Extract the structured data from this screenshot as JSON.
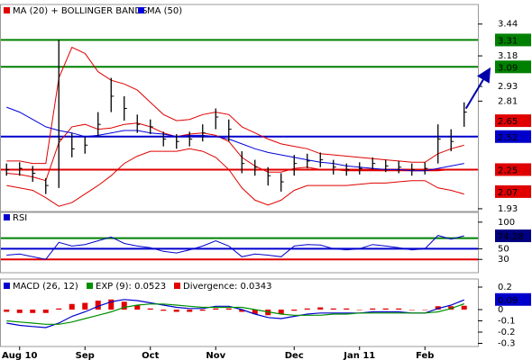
{
  "chart_data": [
    {
      "type": "ohlc",
      "high": [
        2.3,
        2.31,
        2.28,
        2.18,
        3.31,
        2.55,
        2.52,
        2.72,
        3.0,
        2.85,
        2.7,
        2.66,
        2.56,
        2.54,
        2.56,
        2.62,
        2.75,
        2.66,
        2.4,
        2.33,
        2.27,
        2.22,
        2.37,
        2.38,
        2.39,
        2.33,
        2.3,
        2.31,
        2.35,
        2.33,
        2.32,
        2.3,
        2.31,
        2.62,
        2.58,
        2.8
      ],
      "low": [
        2.2,
        2.2,
        2.15,
        2.05,
        2.1,
        2.35,
        2.38,
        2.52,
        2.72,
        2.65,
        2.55,
        2.54,
        2.44,
        2.42,
        2.44,
        2.48,
        2.58,
        2.48,
        2.22,
        2.2,
        2.12,
        2.07,
        2.2,
        2.26,
        2.27,
        2.21,
        2.2,
        2.21,
        2.25,
        2.23,
        2.22,
        2.2,
        2.21,
        2.3,
        2.4,
        2.6
      ],
      "close": [
        2.25,
        2.26,
        2.22,
        2.12,
        2.5,
        2.42,
        2.45,
        2.62,
        2.85,
        2.75,
        2.62,
        2.6,
        2.5,
        2.48,
        2.5,
        2.55,
        2.68,
        2.58,
        2.3,
        2.27,
        2.2,
        2.15,
        2.3,
        2.32,
        2.33,
        2.27,
        2.25,
        2.26,
        2.3,
        2.28,
        2.27,
        2.25,
        2.26,
        2.5,
        2.48,
        2.72
      ],
      "price_color": "#000000",
      "series": [
        {
          "name": "MA (20) + BOLLINGER BANDS",
          "color": "#e00000",
          "values": [
            2.22,
            2.21,
            2.19,
            2.16,
            2.47,
            2.6,
            2.62,
            2.58,
            2.59,
            2.62,
            2.63,
            2.6,
            2.55,
            2.52,
            2.54,
            2.55,
            2.53,
            2.48,
            2.35,
            2.28,
            2.23,
            2.23,
            2.26,
            2.27,
            2.25,
            2.25,
            2.24,
            2.24,
            2.24,
            2.24,
            2.24,
            2.24,
            2.24,
            2.24,
            2.25,
            2.25
          ],
          "upper": [
            2.32,
            2.32,
            2.3,
            2.3,
            3.0,
            3.25,
            3.2,
            3.05,
            2.98,
            2.95,
            2.9,
            2.8,
            2.7,
            2.65,
            2.66,
            2.7,
            2.72,
            2.7,
            2.6,
            2.55,
            2.5,
            2.46,
            2.44,
            2.42,
            2.38,
            2.37,
            2.36,
            2.35,
            2.34,
            2.33,
            2.32,
            2.31,
            2.31,
            2.38,
            2.42,
            2.45
          ],
          "lower": [
            2.12,
            2.1,
            2.08,
            2.02,
            1.95,
            1.98,
            2.05,
            2.12,
            2.2,
            2.3,
            2.36,
            2.4,
            2.4,
            2.4,
            2.42,
            2.4,
            2.35,
            2.25,
            2.1,
            2.0,
            1.96,
            2.0,
            2.08,
            2.12,
            2.12,
            2.12,
            2.12,
            2.13,
            2.14,
            2.14,
            2.15,
            2.16,
            2.16,
            2.1,
            2.08,
            2.05
          ]
        },
        {
          "name": "MA (50)",
          "color": "#0000dd",
          "values": [
            2.76,
            2.72,
            2.66,
            2.6,
            2.57,
            2.55,
            2.52,
            2.53,
            2.55,
            2.57,
            2.57,
            2.55,
            2.54,
            2.52,
            2.53,
            2.53,
            2.52,
            2.5,
            2.46,
            2.42,
            2.39,
            2.37,
            2.35,
            2.33,
            2.31,
            2.3,
            2.28,
            2.27,
            2.26,
            2.25,
            2.25,
            2.24,
            2.24,
            2.26,
            2.28,
            2.3
          ]
        }
      ],
      "levels": [
        {
          "value": 3.31,
          "color": "#008000"
        },
        {
          "value": 3.09,
          "color": "#008000"
        },
        {
          "value": 2.52,
          "color": "#0000cc"
        },
        {
          "value": 2.25,
          "color": "#e00000"
        }
      ],
      "price_labels": [
        {
          "value": 2.65,
          "color": "#e00000"
        },
        {
          "value": 2.07,
          "color": "#e00000"
        }
      ],
      "ylim": [
        1.9,
        3.6
      ],
      "yticks": [
        3.44,
        3.18,
        2.93,
        2.81,
        1.93
      ]
    },
    {
      "type": "line",
      "series": [
        {
          "name": "RSI",
          "color": "#0000cc",
          "values": [
            38,
            40,
            35,
            30,
            62,
            55,
            58,
            65,
            72,
            60,
            55,
            52,
            45,
            42,
            48,
            55,
            65,
            55,
            35,
            40,
            38,
            35,
            55,
            58,
            57,
            50,
            48,
            50,
            58,
            55,
            52,
            48,
            50,
            75,
            68,
            74.28
          ]
        }
      ],
      "levels": [
        {
          "value": 70,
          "color": "#008000"
        },
        {
          "value": 50,
          "color": "#0000cc"
        },
        {
          "value": 30,
          "color": "#e00000"
        }
      ],
      "price_labels": [
        {
          "value": 74.28,
          "color": "#000080"
        }
      ],
      "ylim": [
        5,
        120
      ],
      "yticks": [
        100,
        50,
        30
      ]
    },
    {
      "type": "macd",
      "categories": [
        null,
        "Aug 10",
        null,
        null,
        null,
        null,
        "Sep",
        null,
        null,
        null,
        null,
        "Oct",
        null,
        null,
        null,
        null,
        "Nov",
        null,
        null,
        null,
        null,
        null,
        "Dec",
        null,
        null,
        null,
        null,
        "Jan 11",
        null,
        null,
        null,
        null,
        "Feb",
        null,
        null,
        null
      ],
      "series": [
        {
          "name": "MACD (26, 12)",
          "color": "#0000cc",
          "style": "line",
          "values": [
            -0.12,
            -0.14,
            -0.15,
            -0.16,
            -0.12,
            -0.06,
            -0.02,
            0.03,
            0.07,
            0.09,
            0.08,
            0.06,
            0.04,
            0.02,
            0.01,
            0.01,
            0.03,
            0.03,
            0.0,
            -0.04,
            -0.07,
            -0.08,
            -0.06,
            -0.04,
            -0.03,
            -0.03,
            -0.03,
            -0.03,
            -0.02,
            -0.02,
            -0.02,
            -0.03,
            -0.03,
            0.01,
            0.04,
            0.0866
          ]
        },
        {
          "name": "EXP (9): 0.0523",
          "color": "#009000",
          "style": "line",
          "values": [
            -0.1,
            -0.11,
            -0.12,
            -0.13,
            -0.13,
            -0.11,
            -0.08,
            -0.05,
            -0.02,
            0.02,
            0.04,
            0.05,
            0.05,
            0.04,
            0.03,
            0.02,
            0.02,
            0.02,
            0.02,
            0.0,
            -0.02,
            -0.04,
            -0.05,
            -0.05,
            -0.05,
            -0.04,
            -0.04,
            -0.03,
            -0.03,
            -0.03,
            -0.03,
            -0.03,
            -0.03,
            -0.02,
            0.01,
            0.0523
          ]
        },
        {
          "name": "Divergence: 0.0343",
          "color": "#e00000",
          "style": "bar",
          "values": [
            -0.02,
            -0.03,
            -0.03,
            -0.03,
            0.01,
            0.05,
            0.06,
            0.08,
            0.09,
            0.07,
            0.04,
            0.01,
            -0.01,
            -0.02,
            -0.02,
            -0.01,
            0.01,
            0.01,
            -0.02,
            -0.04,
            -0.05,
            -0.04,
            -0.01,
            0.01,
            0.02,
            0.01,
            0.01,
            0.0,
            0.01,
            0.01,
            0.01,
            0.0,
            0.0,
            0.03,
            0.03,
            0.0343
          ]
        }
      ],
      "price_labels": [
        {
          "value": 0.09,
          "color": "#0000cc"
        }
      ],
      "ylim": [
        -0.328,
        0.272
      ],
      "yticks": [
        0.2,
        0,
        -0.1,
        -0.2,
        -0.3
      ]
    }
  ]
}
